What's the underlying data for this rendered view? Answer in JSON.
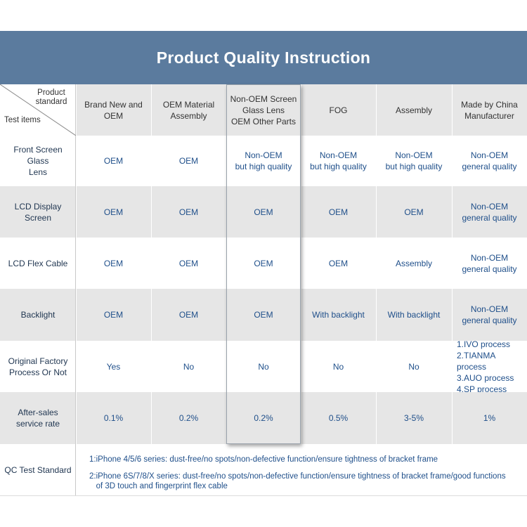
{
  "title": "Product Quality Instruction",
  "corner": {
    "top": "Product\nstandard",
    "bottom": "Test items"
  },
  "columns": [
    "Brand New and\nOEM",
    "OEM Material\nAssembly",
    "Non-OEM Screen\nGlass Lens\nOEM Other Parts",
    "FOG",
    "Assembly",
    "Made by China\nManufacturer"
  ],
  "rows": [
    {
      "label": "Front Screen Glass\nLens",
      "values": [
        "OEM",
        "OEM",
        "Non-OEM\nbut high quality",
        "Non-OEM\nbut high quality",
        "Non-OEM\nbut high quality",
        "Non-OEM\ngeneral quality"
      ]
    },
    {
      "label": "LCD Display\nScreen",
      "values": [
        "OEM",
        "OEM",
        "OEM",
        "OEM",
        "OEM",
        "Non-OEM\ngeneral quality"
      ]
    },
    {
      "label": "LCD Flex Cable",
      "values": [
        "OEM",
        "OEM",
        "OEM",
        "OEM",
        "Assembly",
        "Non-OEM\ngeneral quality"
      ]
    },
    {
      "label": "Backlight",
      "values": [
        "OEM",
        "OEM",
        "OEM",
        "With backlight",
        "With backlight",
        "Non-OEM\ngeneral quality"
      ]
    },
    {
      "label": "Original Factory\nProcess Or Not",
      "values": [
        "Yes",
        "No",
        "No",
        "No",
        "No",
        "1.IVO process\n2.TIANMA process\n3.AUO process\n4.SP process"
      ]
    },
    {
      "label": "After-sales\nservice rate",
      "values": [
        "0.1%",
        "0.2%",
        "0.2%",
        "0.5%",
        "3-5%",
        "1%"
      ]
    }
  ],
  "qc": {
    "label": "QC Test Standard",
    "line1": "1:iPhone 4/5/6 series: dust-free/no spots/non-defective function/ensure tightness of bracket frame",
    "line2": "2:iPhone 6S/7/8/X series: dust-free/no spots/non-defective function/ensure tightness of bracket frame/good functions\n   of 3D touch and fingerprint flex cable"
  },
  "colors": {
    "header_bg": "#5b7b9e",
    "band_gray": "#e6e6e6",
    "row_header_white": "#ffffff",
    "value_text": "#1f4f8a"
  }
}
